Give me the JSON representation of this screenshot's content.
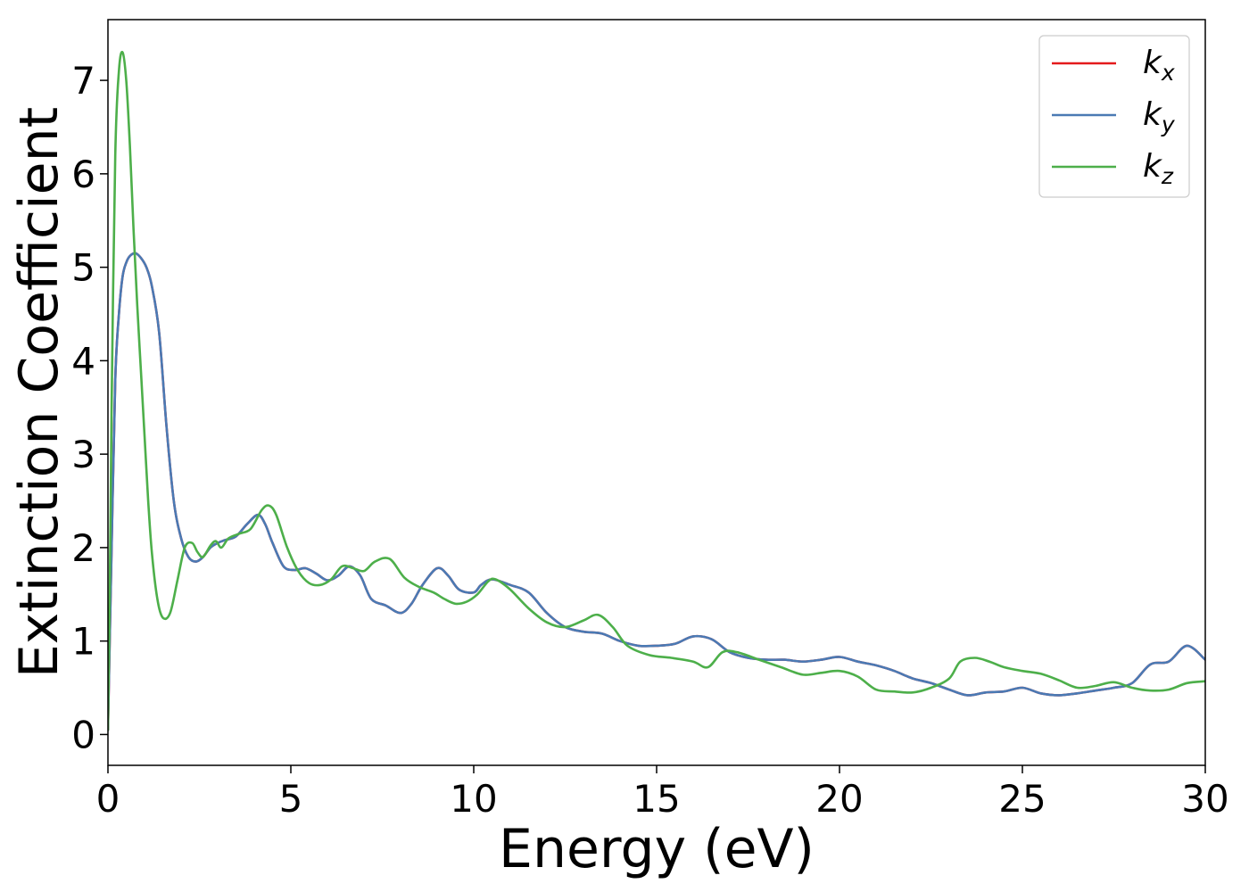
{
  "chart_data": {
    "type": "line",
    "title": "",
    "xlabel": "Energy (eV)",
    "ylabel": "Extinction Coefficient",
    "xlim": [
      0,
      30
    ],
    "ylim": [
      -0.33,
      7.65
    ],
    "xticks": [
      0,
      5,
      10,
      15,
      20,
      25,
      30
    ],
    "yticks": [
      0,
      1,
      2,
      3,
      4,
      5,
      6,
      7
    ],
    "grid": false,
    "legend_position": "top-right",
    "series": [
      {
        "name": "k",
        "sub": "x",
        "color": "#e41a1c",
        "x": [
          0,
          0.1,
          0.2,
          0.3,
          0.4,
          0.5,
          0.6,
          0.75,
          0.9,
          1.05,
          1.2,
          1.4,
          1.6,
          1.8,
          2.0,
          2.2,
          2.4,
          2.6,
          2.8,
          3.0,
          3.2,
          3.5,
          3.8,
          4.1,
          4.3,
          4.5,
          4.8,
          5.1,
          5.4,
          5.7,
          6.0,
          6.3,
          6.6,
          6.9,
          7.2,
          7.6,
          8.0,
          8.3,
          8.6,
          9.0,
          9.3,
          9.6,
          10.0,
          10.2,
          10.5,
          11.0,
          11.5,
          12.0,
          12.5,
          13.0,
          13.5,
          14.0,
          14.5,
          15.0,
          15.5,
          16.0,
          16.5,
          17.0,
          17.5,
          18.0,
          18.5,
          19.0,
          19.5,
          20.0,
          20.5,
          21.0,
          21.5,
          22.0,
          22.5,
          23.0,
          23.5,
          24.0,
          24.5,
          25.0,
          25.5,
          26.0,
          26.5,
          27.0,
          27.5,
          28.0,
          28.5,
          29.0,
          29.5,
          30.0
        ],
        "y": [
          0.05,
          2.0,
          3.8,
          4.5,
          4.9,
          5.05,
          5.12,
          5.15,
          5.1,
          5.0,
          4.8,
          4.3,
          3.3,
          2.5,
          2.1,
          1.9,
          1.85,
          1.9,
          2.0,
          2.05,
          2.08,
          2.12,
          2.25,
          2.35,
          2.25,
          2.05,
          1.8,
          1.76,
          1.78,
          1.72,
          1.65,
          1.7,
          1.8,
          1.7,
          1.45,
          1.38,
          1.3,
          1.4,
          1.6,
          1.78,
          1.7,
          1.55,
          1.52,
          1.6,
          1.66,
          1.6,
          1.52,
          1.3,
          1.15,
          1.1,
          1.08,
          1.0,
          0.95,
          0.95,
          0.97,
          1.05,
          1.02,
          0.88,
          0.82,
          0.8,
          0.8,
          0.78,
          0.8,
          0.83,
          0.78,
          0.74,
          0.68,
          0.6,
          0.55,
          0.48,
          0.42,
          0.45,
          0.46,
          0.5,
          0.44,
          0.42,
          0.44,
          0.47,
          0.5,
          0.55,
          0.75,
          0.78,
          0.95,
          0.8
        ]
      },
      {
        "name": "k",
        "sub": "y",
        "color": "#4a7ab4",
        "x": [
          0,
          0.1,
          0.2,
          0.3,
          0.4,
          0.5,
          0.6,
          0.75,
          0.9,
          1.05,
          1.2,
          1.4,
          1.6,
          1.8,
          2.0,
          2.2,
          2.4,
          2.6,
          2.8,
          3.0,
          3.2,
          3.5,
          3.8,
          4.1,
          4.3,
          4.5,
          4.8,
          5.1,
          5.4,
          5.7,
          6.0,
          6.3,
          6.6,
          6.9,
          7.2,
          7.6,
          8.0,
          8.3,
          8.6,
          9.0,
          9.3,
          9.6,
          10.0,
          10.2,
          10.5,
          11.0,
          11.5,
          12.0,
          12.5,
          13.0,
          13.5,
          14.0,
          14.5,
          15.0,
          15.5,
          16.0,
          16.5,
          17.0,
          17.5,
          18.0,
          18.5,
          19.0,
          19.5,
          20.0,
          20.5,
          21.0,
          21.5,
          22.0,
          22.5,
          23.0,
          23.5,
          24.0,
          24.5,
          25.0,
          25.5,
          26.0,
          26.5,
          27.0,
          27.5,
          28.0,
          28.5,
          29.0,
          29.5,
          30.0
        ],
        "y": [
          0.05,
          2.0,
          3.8,
          4.5,
          4.9,
          5.05,
          5.12,
          5.15,
          5.1,
          5.0,
          4.8,
          4.3,
          3.3,
          2.5,
          2.1,
          1.9,
          1.85,
          1.9,
          2.0,
          2.05,
          2.08,
          2.12,
          2.25,
          2.35,
          2.25,
          2.05,
          1.8,
          1.76,
          1.78,
          1.72,
          1.65,
          1.7,
          1.8,
          1.7,
          1.45,
          1.38,
          1.3,
          1.4,
          1.6,
          1.78,
          1.7,
          1.55,
          1.52,
          1.6,
          1.66,
          1.6,
          1.52,
          1.3,
          1.15,
          1.1,
          1.08,
          1.0,
          0.95,
          0.95,
          0.97,
          1.05,
          1.02,
          0.88,
          0.82,
          0.8,
          0.8,
          0.78,
          0.8,
          0.83,
          0.78,
          0.74,
          0.68,
          0.6,
          0.55,
          0.48,
          0.42,
          0.45,
          0.46,
          0.5,
          0.44,
          0.42,
          0.44,
          0.47,
          0.5,
          0.55,
          0.75,
          0.78,
          0.95,
          0.8
        ]
      },
      {
        "name": "k",
        "sub": "z",
        "color": "#4daf4a",
        "x": [
          0,
          0.05,
          0.1,
          0.2,
          0.3,
          0.4,
          0.5,
          0.6,
          0.7,
          0.8,
          0.9,
          1.0,
          1.1,
          1.2,
          1.35,
          1.5,
          1.7,
          1.9,
          2.1,
          2.3,
          2.45,
          2.6,
          2.8,
          2.95,
          3.1,
          3.3,
          3.6,
          3.9,
          4.2,
          4.4,
          4.6,
          4.9,
          5.2,
          5.5,
          5.8,
          6.1,
          6.4,
          6.7,
          7.0,
          7.3,
          7.7,
          8.1,
          8.5,
          8.9,
          9.2,
          9.5,
          9.8,
          10.1,
          10.4,
          10.6,
          11.0,
          11.5,
          12.0,
          12.5,
          13.0,
          13.4,
          13.8,
          14.2,
          14.8,
          15.4,
          16.0,
          16.4,
          16.8,
          17.2,
          17.8,
          18.4,
          19.0,
          19.5,
          20.0,
          20.5,
          21.0,
          21.5,
          22.0,
          22.5,
          23.0,
          23.3,
          23.7,
          24.1,
          24.5,
          25.0,
          25.5,
          26.0,
          26.5,
          27.0,
          27.5,
          28.0,
          28.5,
          29.0,
          29.5,
          30.0
        ],
        "y": [
          0.05,
          1.5,
          3.5,
          6.2,
          7.1,
          7.3,
          7.0,
          6.3,
          5.4,
          4.6,
          3.9,
          3.2,
          2.5,
          1.95,
          1.45,
          1.25,
          1.3,
          1.65,
          2.0,
          2.05,
          1.95,
          1.9,
          2.02,
          2.07,
          2.0,
          2.1,
          2.15,
          2.2,
          2.4,
          2.45,
          2.35,
          2.0,
          1.75,
          1.62,
          1.6,
          1.66,
          1.8,
          1.78,
          1.75,
          1.85,
          1.88,
          1.68,
          1.58,
          1.52,
          1.45,
          1.4,
          1.42,
          1.5,
          1.64,
          1.66,
          1.55,
          1.35,
          1.2,
          1.15,
          1.22,
          1.28,
          1.15,
          0.95,
          0.85,
          0.82,
          0.78,
          0.72,
          0.88,
          0.88,
          0.8,
          0.72,
          0.64,
          0.66,
          0.68,
          0.62,
          0.48,
          0.46,
          0.45,
          0.5,
          0.6,
          0.78,
          0.82,
          0.78,
          0.72,
          0.68,
          0.65,
          0.58,
          0.5,
          0.52,
          0.56,
          0.5,
          0.47,
          0.48,
          0.55,
          0.57
        ]
      }
    ]
  }
}
